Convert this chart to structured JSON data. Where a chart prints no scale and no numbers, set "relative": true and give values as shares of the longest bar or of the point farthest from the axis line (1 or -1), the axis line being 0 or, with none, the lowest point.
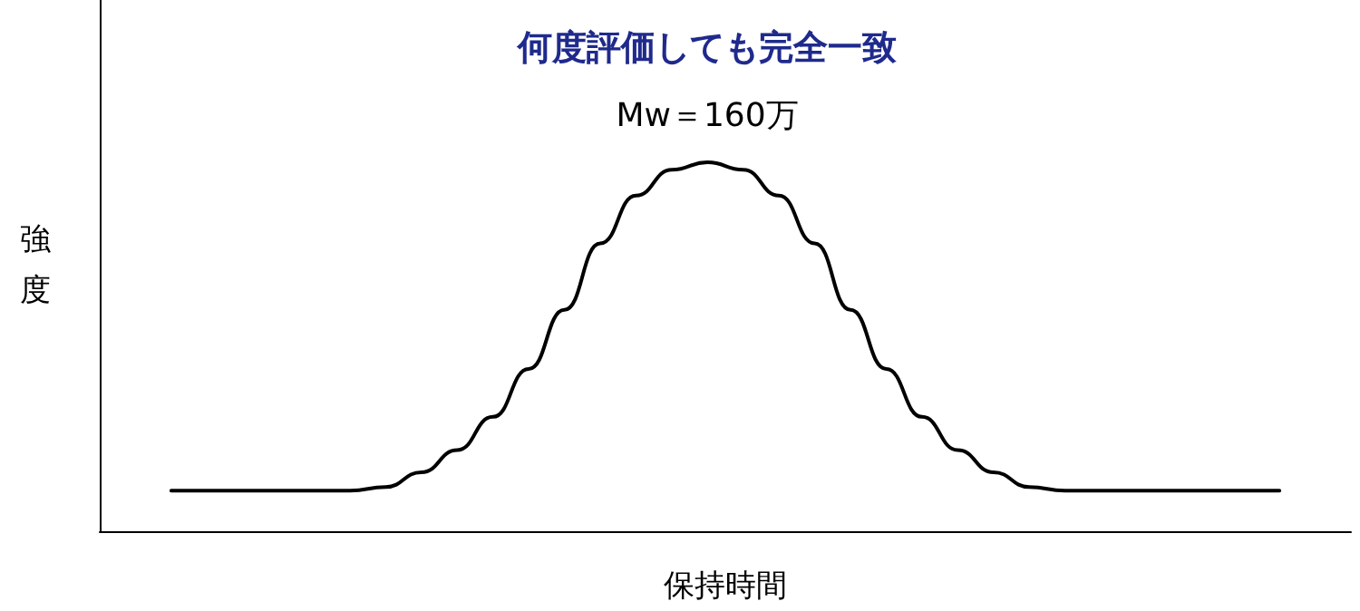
{
  "chart_data": {
    "type": "line",
    "title": "何度評価しても完全一致",
    "subtitle": "Mw＝160万",
    "xlabel": "保持時間",
    "ylabel": "強度",
    "relative": true,
    "grid": false,
    "marker": "none",
    "line_style": "solid",
    "categories": [
      null,
      null,
      null,
      null,
      null,
      null,
      null,
      null,
      null,
      null,
      null,
      null,
      null,
      null,
      null,
      null,
      null,
      null,
      null,
      null,
      null,
      null,
      null,
      null,
      null,
      null,
      null,
      null,
      null,
      null,
      null,
      null,
      null,
      null,
      null,
      null
    ],
    "series": [
      {
        "color": "#000000",
        "values": [
          null,
          null,
          0.11,
          0.11,
          0.11,
          0.11,
          0.11,
          0.11,
          0.12,
          0.16,
          0.22,
          0.31,
          0.44,
          0.6,
          0.78,
          0.91,
          0.98,
          1,
          0.98,
          0.91,
          0.78,
          0.6,
          0.44,
          0.31,
          0.22,
          0.16,
          0.12,
          0.11,
          0.11,
          0.11,
          0.11,
          0.11,
          0.11,
          0.11,
          null,
          null
        ]
      }
    ]
  }
}
